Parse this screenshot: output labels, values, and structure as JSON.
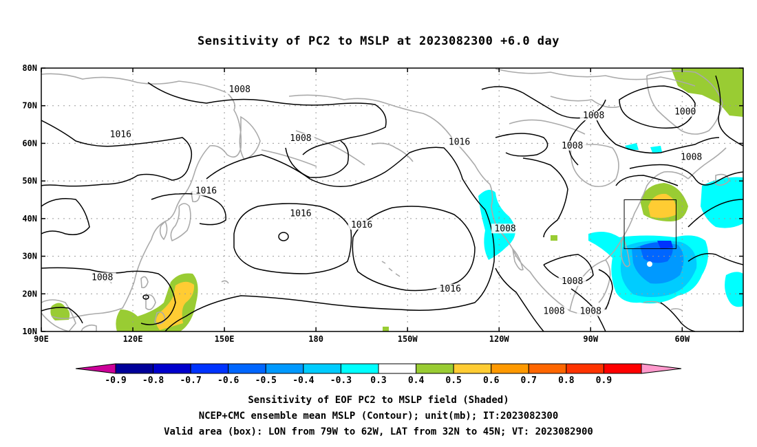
{
  "title": "Sensitivity of PC2 to MSLP at 2023082300 +6.0 day",
  "captions": {
    "line1": "Sensitivity of EOF PC2 to MSLP field (Shaded)",
    "line2": "NCEP+CMC ensemble mean MSLP (Contour); unit(mb); IT:2023082300",
    "line3": "Valid area (box): LON from 79W to 62W, LAT from 32N to 45N; VT: 2023082900"
  },
  "map": {
    "lon_range": [
      90,
      320
    ],
    "lat_range": [
      10,
      80
    ],
    "lon_ticks": [
      {
        "lon": 90,
        "label": "90E"
      },
      {
        "lon": 120,
        "label": "120E"
      },
      {
        "lon": 150,
        "label": "150E"
      },
      {
        "lon": 180,
        "label": "180"
      },
      {
        "lon": 210,
        "label": "150W"
      },
      {
        "lon": 240,
        "label": "120W"
      },
      {
        "lon": 270,
        "label": "90W"
      },
      {
        "lon": 300,
        "label": "60W"
      }
    ],
    "lat_ticks": [
      {
        "lat": 10,
        "label": "10N"
      },
      {
        "lat": 20,
        "label": "20N"
      },
      {
        "lat": 30,
        "label": "30N"
      },
      {
        "lat": 40,
        "label": "40N"
      },
      {
        "lat": 50,
        "label": "50N"
      },
      {
        "lat": 60,
        "label": "60N"
      },
      {
        "lat": 70,
        "label": "70N"
      },
      {
        "lat": 80,
        "label": "80N"
      }
    ],
    "grid": true,
    "valid_box": {
      "lon_w": 281,
      "lon_e": 298,
      "lat_s": 32,
      "lat_n": 45
    },
    "contour_labels": [
      {
        "text": "1008",
        "lon": 155,
        "lat": 74
      },
      {
        "text": "1016",
        "lon": 116,
        "lat": 62
      },
      {
        "text": "1008",
        "lon": 175,
        "lat": 61
      },
      {
        "text": "1016",
        "lon": 227,
        "lat": 60
      },
      {
        "text": "1008",
        "lon": 271,
        "lat": 67
      },
      {
        "text": "1008",
        "lon": 264,
        "lat": 59
      },
      {
        "text": "1000",
        "lon": 301,
        "lat": 68
      },
      {
        "text": "1008",
        "lon": 303,
        "lat": 56
      },
      {
        "text": "1016",
        "lon": 144,
        "lat": 47
      },
      {
        "text": "1016",
        "lon": 175,
        "lat": 41
      },
      {
        "text": "1016",
        "lon": 195,
        "lat": 38
      },
      {
        "text": "1008",
        "lon": 242,
        "lat": 37
      },
      {
        "text": "1008",
        "lon": 110,
        "lat": 24
      },
      {
        "text": "1016",
        "lon": 224,
        "lat": 21
      },
      {
        "text": "1008",
        "lon": 264,
        "lat": 23
      },
      {
        "text": "1008",
        "lon": 258,
        "lat": 15
      },
      {
        "text": "1008",
        "lon": 270,
        "lat": 15
      }
    ],
    "shaded_regions": [
      {
        "level": 0.3,
        "color": "#99cc33"
      },
      {
        "level": 0.4,
        "color": "#ffcc33"
      },
      {
        "level": -0.4,
        "color": "#00ffff"
      },
      {
        "level": -0.5,
        "color": "#00ccff"
      },
      {
        "level": -0.6,
        "color": "#0099ff"
      },
      {
        "level": -0.7,
        "color": "#0066ff"
      },
      {
        "level": -0.8,
        "color": "#0033ff"
      }
    ]
  },
  "colorbar": {
    "labels": [
      "-0.9",
      "-0.8",
      "-0.7",
      "-0.6",
      "-0.5",
      "-0.4",
      "-0.3",
      "0.3",
      "0.4",
      "0.5",
      "0.6",
      "0.7",
      "0.8",
      "0.9"
    ],
    "colors": [
      "#cc0099",
      "#000099",
      "#0000cc",
      "#0033ff",
      "#0066ff",
      "#0099ff",
      "#00ccff",
      "#00ffff",
      "#ffffff",
      "#99cc33",
      "#ffcc33",
      "#ff9900",
      "#ff6600",
      "#ff3300",
      "#ff0000",
      "#ff99cc"
    ]
  }
}
